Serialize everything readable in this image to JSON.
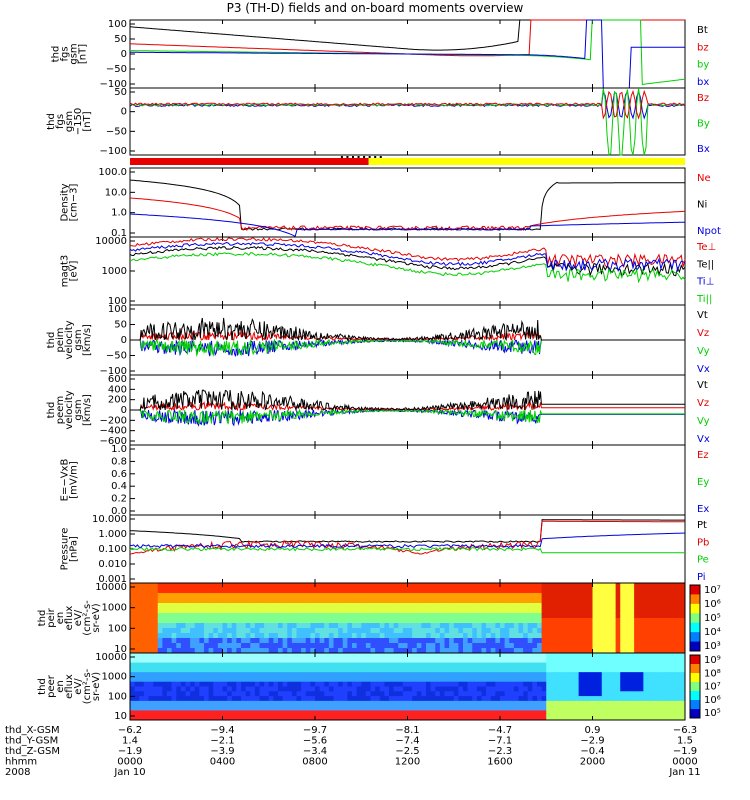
{
  "title": "P3 (TH-D) fields and on-board moments overview",
  "colors": {
    "black": "#000000",
    "red": "#e60000",
    "green": "#00d000",
    "blue": "#0000e0",
    "yellow": "#ffff00"
  },
  "chart_data": [
    {
      "id": "fgs",
      "type": "line",
      "ylabel": [
        "thd",
        "fgs",
        "gsm",
        "[nT]"
      ],
      "ylim": [
        -100,
        100
      ],
      "yticks": [
        "100",
        "50",
        "0",
        "−50",
        "−100"
      ],
      "legend": [
        {
          "label": "Bt",
          "color": "#000000"
        },
        {
          "label": "bz",
          "color": "#e60000"
        },
        {
          "label": "by",
          "color": "#00d000"
        },
        {
          "label": "bx",
          "color": "#0000e0"
        }
      ]
    },
    {
      "id": "fgs_dsl",
      "type": "line",
      "ylabel": [
        "thd",
        "fgs",
        "gsm",
        "−150",
        "[nT]"
      ],
      "ylim": [
        -150,
        50
      ],
      "yticks": [
        "50",
        "0",
        "−50",
        "−100"
      ],
      "legend": [
        {
          "label": "Bz",
          "color": "#e60000"
        },
        {
          "label": "By",
          "color": "#00d000"
        },
        {
          "label": "Bx",
          "color": "#0000e0"
        }
      ]
    },
    {
      "id": "mode_bar",
      "type": "bar",
      "segments": [
        {
          "from": 0,
          "to": 0.43,
          "color": "#e60000"
        },
        {
          "from": 0.43,
          "to": 1,
          "color": "#ffff00"
        }
      ]
    },
    {
      "id": "density",
      "type": "line",
      "scale": "log",
      "ylabel": [
        "Density",
        "[cm−3]"
      ],
      "ylim": [
        0.1,
        100
      ],
      "yticks": [
        "100.0",
        "10.0",
        "1.0",
        "0.1"
      ],
      "legend": [
        {
          "label": "Ne",
          "color": "#e60000"
        },
        {
          "label": "Ni",
          "color": "#000000"
        },
        {
          "label": "Npot",
          "color": "#0000e0"
        }
      ]
    },
    {
      "id": "temperature",
      "type": "line",
      "scale": "log",
      "ylabel": [
        "magt3",
        "[eV]"
      ],
      "ylim": [
        100,
        10000
      ],
      "yticks": [
        "10000",
        "1000",
        "100"
      ],
      "legend": [
        {
          "label": "Te⊥",
          "color": "#e60000"
        },
        {
          "label": "Te||",
          "color": "#000000"
        },
        {
          "label": "Ti⊥",
          "color": "#0000e0"
        },
        {
          "label": "Ti||",
          "color": "#00d000"
        }
      ]
    },
    {
      "id": "peim_velocity",
      "type": "line",
      "ylabel": [
        "thd",
        "peim",
        "velocity",
        "gsm",
        "[km/s]"
      ],
      "ylim": [
        -100,
        100
      ],
      "yticks": [
        "100",
        "50",
        "0",
        "−50",
        "−100"
      ],
      "legend": [
        {
          "label": "Vt",
          "color": "#000000"
        },
        {
          "label": "Vz",
          "color": "#e60000"
        },
        {
          "label": "Vy",
          "color": "#00d000"
        },
        {
          "label": "Vx",
          "color": "#0000e0"
        }
      ]
    },
    {
      "id": "peem_velocity",
      "type": "line",
      "ylabel": [
        "thd",
        "peem",
        "velocity",
        "gsm",
        "[km/s]"
      ],
      "ylim": [
        -600,
        600
      ],
      "yticks": [
        "600",
        "400",
        "200",
        "0",
        "−200",
        "−400",
        "−600"
      ],
      "legend": [
        {
          "label": "Vt",
          "color": "#000000"
        },
        {
          "label": "Vz",
          "color": "#e60000"
        },
        {
          "label": "Vy",
          "color": "#00d000"
        },
        {
          "label": "Vx",
          "color": "#0000e0"
        }
      ]
    },
    {
      "id": "efield",
      "type": "line",
      "ylabel": [
        "E=−VxB",
        "[mV/m]"
      ],
      "ylim": [
        0,
        1
      ],
      "yticks": [
        "1.0",
        "0.8",
        "0.6",
        "0.4",
        "0.2",
        "0.0"
      ],
      "legend": [
        {
          "label": "Ez",
          "color": "#e60000"
        },
        {
          "label": "Ey",
          "color": "#00d000"
        },
        {
          "label": "Ex",
          "color": "#0000e0"
        }
      ]
    },
    {
      "id": "pressure",
      "type": "line",
      "scale": "log",
      "ylabel": [
        "Pressure",
        "[nPa]"
      ],
      "ylim": [
        0.001,
        10
      ],
      "yticks": [
        "10.000",
        "1.000",
        "0.100",
        "0.010",
        "0.001"
      ],
      "legend": [
        {
          "label": "Pt",
          "color": "#000000"
        },
        {
          "label": "Pb",
          "color": "#e60000"
        },
        {
          "label": "Pe",
          "color": "#00d000"
        },
        {
          "label": "Pi",
          "color": "#0000e0"
        }
      ]
    },
    {
      "id": "peir_spec",
      "type": "heatmap",
      "ylabel": [
        "thd",
        "peir",
        "en",
        "eflux",
        "eV/",
        "(cm²-s-",
        "sr-eV)"
      ],
      "yticks": [
        "10000",
        "1000",
        "100",
        "10"
      ],
      "colorbar": [
        "10⁷",
        "10⁶",
        "10⁵",
        "10⁴",
        "10³"
      ]
    },
    {
      "id": "peer_spec",
      "type": "heatmap",
      "ylabel": [
        "thd",
        "peer",
        "en",
        "eflux",
        "eV/",
        "(cm²-s-",
        "sr-eV)"
      ],
      "yticks": [
        "10000",
        "1000",
        "100",
        "10"
      ],
      "colorbar": [
        "10⁹",
        "10⁸",
        "10⁷",
        "10⁶",
        "10⁵"
      ]
    }
  ],
  "footer": {
    "rows": [
      {
        "label": "thd_X-GSM",
        "values": [
          "−6.2",
          "−9.4",
          "−9.7",
          "−8.1",
          "−4.7",
          "0.9",
          "−6.3"
        ]
      },
      {
        "label": "thd_Y-GSM",
        "values": [
          "1.4",
          "−2.1",
          "−5.6",
          "−7.4",
          "−7.1",
          "−2.9",
          "1.5"
        ]
      },
      {
        "label": "thd_Z-GSM",
        "values": [
          "−1.9",
          "−3.9",
          "−3.4",
          "−2.5",
          "−2.3",
          "−0.4",
          "−1.9"
        ]
      },
      {
        "label": "hhmm",
        "values": [
          "0000",
          "0400",
          "0800",
          "1200",
          "1600",
          "2000",
          "0000"
        ]
      },
      {
        "label": "2008",
        "values": [
          "Jan 10",
          "",
          "",
          "",
          "",
          "",
          "Jan 11"
        ]
      }
    ]
  }
}
